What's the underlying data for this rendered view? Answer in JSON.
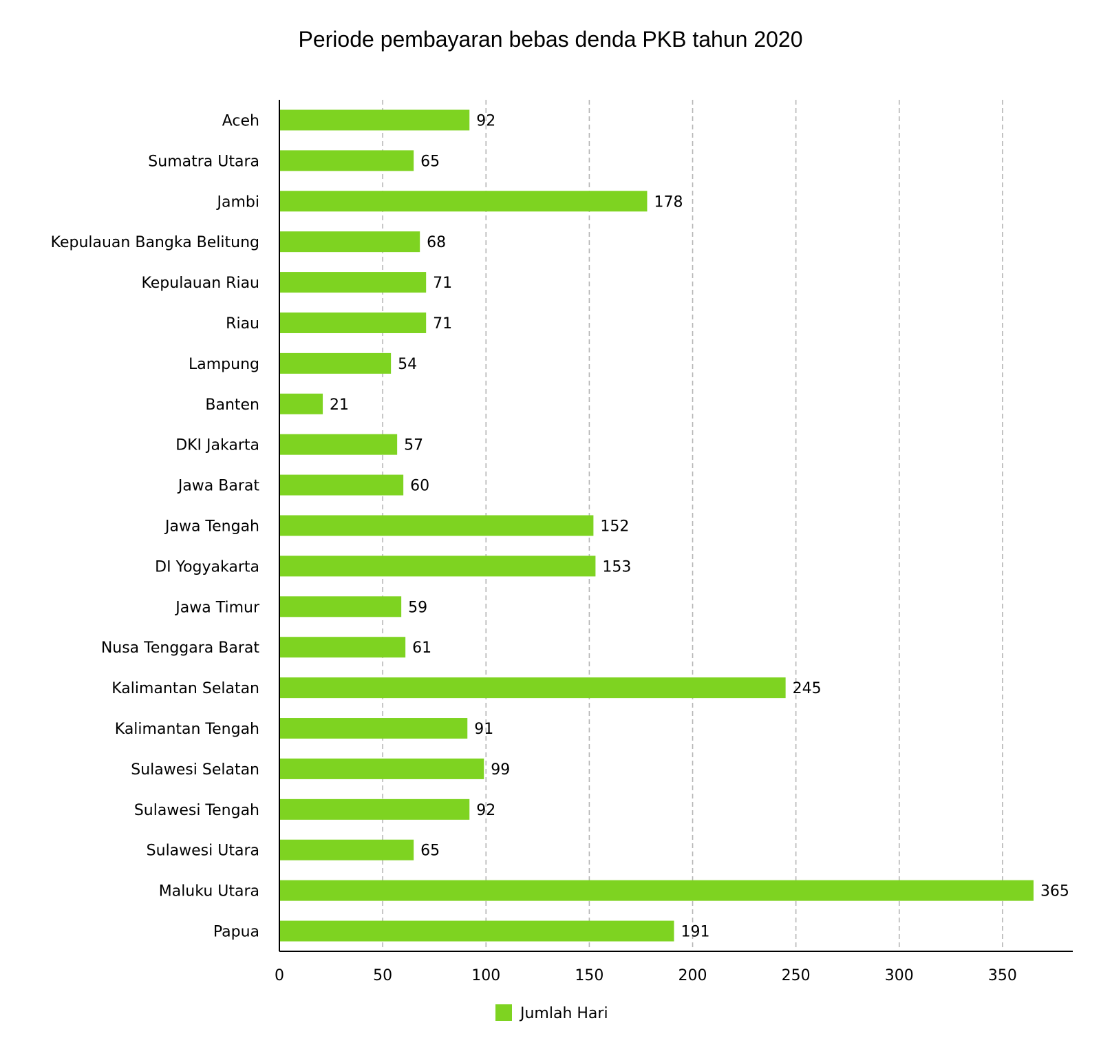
{
  "chart_data": {
    "type": "bar",
    "orientation": "horizontal",
    "title": "Periode pembayaran bebas denda PKB tahun 2020",
    "categories": [
      "Aceh",
      "Sumatra Utara",
      "Jambi",
      "Kepulauan Bangka Belitung",
      "Kepulauan Riau",
      "Riau",
      "Lampung",
      "Banten",
      "DKI Jakarta",
      "Jawa Barat",
      "Jawa Tengah",
      "DI Yogyakarta",
      "Jawa Timur",
      "Nusa Tenggara Barat",
      "Kalimantan Selatan",
      "Kalimantan Tengah",
      "Sulawesi Selatan",
      "Sulawesi Tengah",
      "Sulawesi Utara",
      "Maluku Utara",
      "Papua"
    ],
    "series": [
      {
        "name": "Jumlah Hari",
        "values": [
          92,
          65,
          178,
          68,
          71,
          71,
          54,
          21,
          57,
          60,
          152,
          153,
          59,
          61,
          245,
          91,
          99,
          92,
          65,
          365,
          191
        ]
      }
    ],
    "xlim": [
      0,
      384
    ],
    "xticks": [
      0,
      50,
      100,
      150,
      200,
      250,
      300,
      350
    ],
    "xlabel": "",
    "ylabel": "",
    "grid": "vertical dashed",
    "legend": "bottom-center",
    "colors": {
      "bar": "#7ed321"
    }
  }
}
